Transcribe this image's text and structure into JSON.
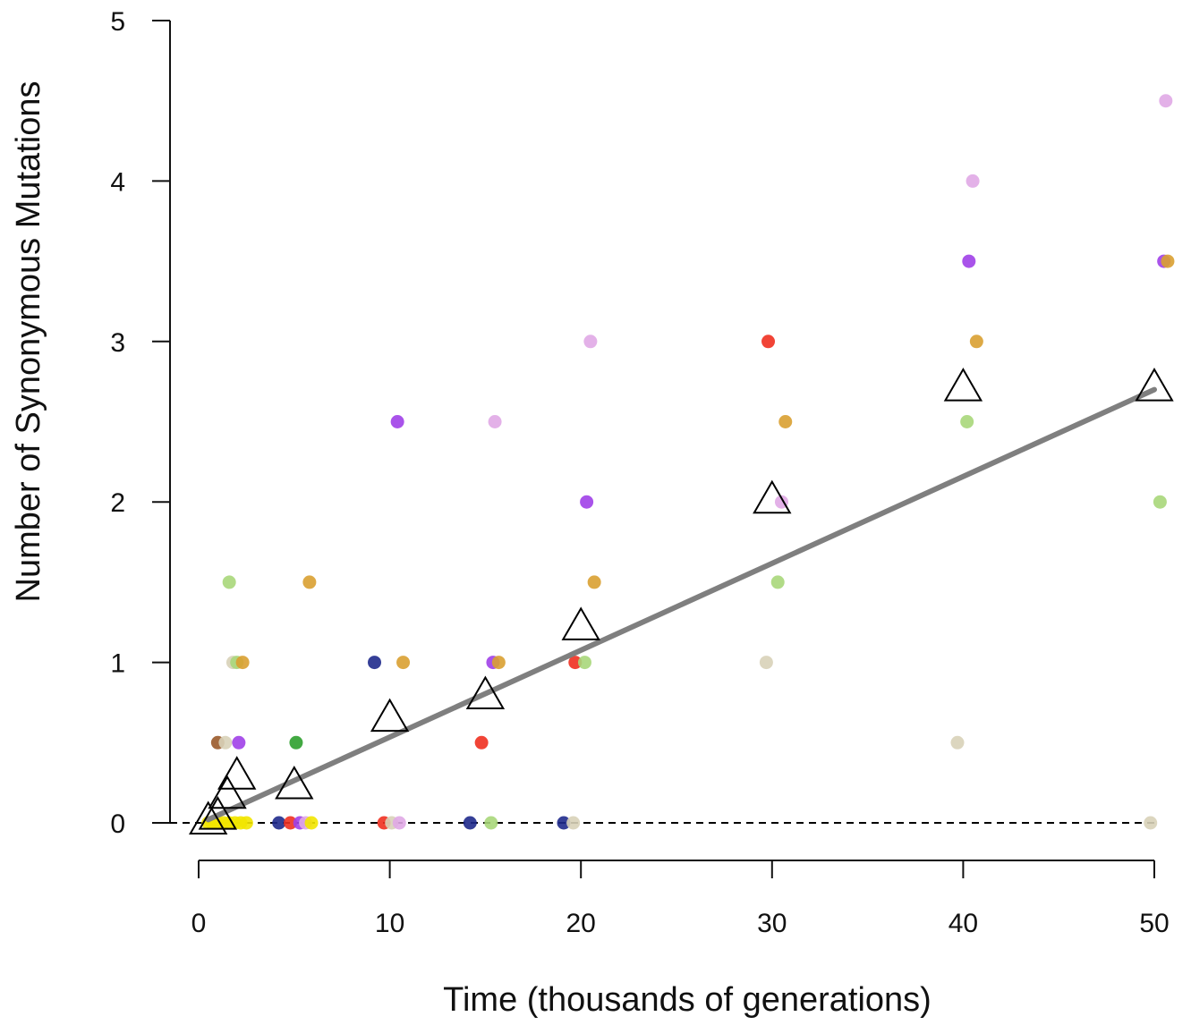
{
  "chart_data": {
    "type": "scatter",
    "title": "",
    "xlabel": "Time (thousands of generations)",
    "ylabel": "Number of Synonymous Mutations",
    "xlim": [
      0,
      50
    ],
    "ylim": [
      0,
      5
    ],
    "x_ticks": [
      0,
      10,
      20,
      30,
      40,
      50
    ],
    "y_ticks": [
      0,
      1,
      2,
      3,
      4,
      5
    ],
    "grid": false,
    "legend": "none",
    "reference_line": {
      "y": 0,
      "style": "dashed",
      "color": "#000000"
    },
    "trend_line": {
      "x": [
        0.5,
        50
      ],
      "y": [
        0.02,
        2.7
      ],
      "color": "#7f7f7f"
    },
    "colors": {
      "yellow": "#f2e600",
      "navy": "#1f2a8c",
      "red": "#f03020",
      "green": "#2ea02e",
      "lightgreen": "#a9d77a",
      "orange": "#d9a031",
      "purple": "#a040e8",
      "pink": "#e0a8e6",
      "tan": "#d8d2b8",
      "brown": "#9a5a2a"
    },
    "points": [
      {
        "x": 0.5,
        "y": 0,
        "color": "yellow"
      },
      {
        "x": 0.7,
        "y": 0,
        "color": "yellow"
      },
      {
        "x": 1.0,
        "y": 0,
        "color": "yellow"
      },
      {
        "x": 1.3,
        "y": 0,
        "color": "yellow"
      },
      {
        "x": 1.6,
        "y": 0,
        "color": "yellow"
      },
      {
        "x": 1.9,
        "y": 0,
        "color": "yellow"
      },
      {
        "x": 2.2,
        "y": 0,
        "color": "yellow"
      },
      {
        "x": 2.5,
        "y": 0,
        "color": "yellow"
      },
      {
        "x": 1.6,
        "y": 1.5,
        "color": "lightgreen"
      },
      {
        "x": 1.8,
        "y": 1.0,
        "color": "tan"
      },
      {
        "x": 2.0,
        "y": 1.0,
        "color": "lightgreen"
      },
      {
        "x": 2.3,
        "y": 1.0,
        "color": "orange"
      },
      {
        "x": 1.0,
        "y": 0.5,
        "color": "brown"
      },
      {
        "x": 1.4,
        "y": 0.5,
        "color": "tan"
      },
      {
        "x": 2.1,
        "y": 0.5,
        "color": "purple"
      },
      {
        "x": 4.2,
        "y": 0,
        "color": "navy"
      },
      {
        "x": 4.8,
        "y": 0,
        "color": "red"
      },
      {
        "x": 5.3,
        "y": 0,
        "color": "purple"
      },
      {
        "x": 5.6,
        "y": 0,
        "color": "pink"
      },
      {
        "x": 5.9,
        "y": 0,
        "color": "yellow"
      },
      {
        "x": 5.1,
        "y": 0.5,
        "color": "green"
      },
      {
        "x": 5.8,
        "y": 1.5,
        "color": "orange"
      },
      {
        "x": 9.2,
        "y": 1.0,
        "color": "navy"
      },
      {
        "x": 10.7,
        "y": 1.0,
        "color": "orange"
      },
      {
        "x": 10.4,
        "y": 2.5,
        "color": "purple"
      },
      {
        "x": 9.7,
        "y": 0,
        "color": "red"
      },
      {
        "x": 10.1,
        "y": 0,
        "color": "tan"
      },
      {
        "x": 10.5,
        "y": 0,
        "color": "pink"
      },
      {
        "x": 14.2,
        "y": 0,
        "color": "navy"
      },
      {
        "x": 15.3,
        "y": 0,
        "color": "lightgreen"
      },
      {
        "x": 14.8,
        "y": 0.5,
        "color": "red"
      },
      {
        "x": 15.4,
        "y": 1.0,
        "color": "purple"
      },
      {
        "x": 15.7,
        "y": 1.0,
        "color": "orange"
      },
      {
        "x": 15.5,
        "y": 2.5,
        "color": "pink"
      },
      {
        "x": 19.1,
        "y": 0,
        "color": "navy"
      },
      {
        "x": 19.6,
        "y": 0,
        "color": "tan"
      },
      {
        "x": 19.7,
        "y": 1.0,
        "color": "red"
      },
      {
        "x": 20.2,
        "y": 1.0,
        "color": "lightgreen"
      },
      {
        "x": 20.7,
        "y": 1.5,
        "color": "orange"
      },
      {
        "x": 20.3,
        "y": 2.0,
        "color": "purple"
      },
      {
        "x": 20.5,
        "y": 3.0,
        "color": "pink"
      },
      {
        "x": 29.7,
        "y": 1.0,
        "color": "tan"
      },
      {
        "x": 30.3,
        "y": 1.5,
        "color": "lightgreen"
      },
      {
        "x": 30.5,
        "y": 2.0,
        "color": "pink"
      },
      {
        "x": 30.7,
        "y": 2.5,
        "color": "orange"
      },
      {
        "x": 29.8,
        "y": 3.0,
        "color": "red"
      },
      {
        "x": 39.7,
        "y": 0.5,
        "color": "tan"
      },
      {
        "x": 40.2,
        "y": 2.5,
        "color": "lightgreen"
      },
      {
        "x": 40.7,
        "y": 3.0,
        "color": "orange"
      },
      {
        "x": 40.3,
        "y": 3.5,
        "color": "purple"
      },
      {
        "x": 40.5,
        "y": 4.0,
        "color": "pink"
      },
      {
        "x": 49.8,
        "y": 0,
        "color": "tan"
      },
      {
        "x": 50.3,
        "y": 2.0,
        "color": "lightgreen"
      },
      {
        "x": 50.5,
        "y": 3.5,
        "color": "purple"
      },
      {
        "x": 50.7,
        "y": 3.5,
        "color": "orange"
      },
      {
        "x": 50.6,
        "y": 4.5,
        "color": "pink"
      }
    ],
    "means": [
      {
        "x": 0.5,
        "y": 0.02
      },
      {
        "x": 1.0,
        "y": 0.05
      },
      {
        "x": 1.5,
        "y": 0.18
      },
      {
        "x": 2.0,
        "y": 0.3
      },
      {
        "x": 5.0,
        "y": 0.24
      },
      {
        "x": 10.0,
        "y": 0.66
      },
      {
        "x": 15.0,
        "y": 0.8
      },
      {
        "x": 20.0,
        "y": 1.23
      },
      {
        "x": 30.0,
        "y": 2.02
      },
      {
        "x": 40.0,
        "y": 2.72
      },
      {
        "x": 50.0,
        "y": 2.72
      }
    ]
  }
}
